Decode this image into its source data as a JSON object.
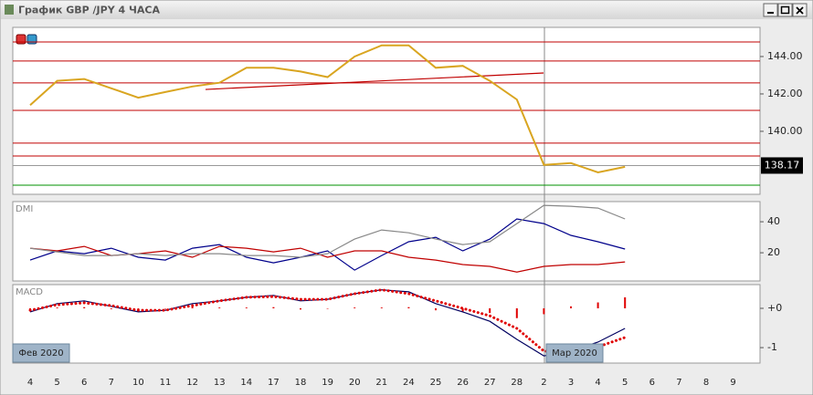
{
  "window": {
    "title": "График GBP /JPY  4 ЧАСА"
  },
  "chart_data": [
    {
      "type": "line",
      "series": [
        {
          "color": "#d9a520",
          "values": [
            141.4,
            142.7,
            142.8,
            142.3,
            141.8,
            142.1,
            142.4,
            142.6,
            143.4,
            143.4,
            143.2,
            142.9,
            144.0,
            144.6,
            144.6,
            143.4,
            143.5,
            142.7,
            141.7,
            138.2,
            138.3,
            137.8,
            138.1,
            null,
            null,
            null,
            null
          ]
        }
      ],
      "ylim": [
        136.68,
        145.56
      ],
      "yticks": [
        {
          "value": 140,
          "label": "140.00"
        },
        {
          "value": 142,
          "label": "142.00"
        },
        {
          "value": 144,
          "label": "144.00"
        }
      ],
      "hlines": [
        {
          "value": 144.78,
          "color": "#c00000"
        },
        {
          "value": 143.76,
          "color": "#c00000"
        },
        {
          "value": 142.59,
          "color": "#c00000"
        },
        {
          "value": 141.12,
          "color": "#c00000"
        },
        {
          "value": 139.37,
          "color": "#c00000"
        },
        {
          "value": 138.68,
          "color": "#c00000"
        },
        {
          "value": 137.12,
          "color": "#009000"
        }
      ],
      "trendlines": [
        {
          "color": "#c00000",
          "values": [
            142.24,
            143.12
          ]
        }
      ],
      "last_price": 138.17
    },
    {
      "type": "line",
      "title": "DMI",
      "series": [
        {
          "color": "#00008b",
          "values": [
            15.3,
            21.2,
            19.4,
            22.9,
            17.1,
            15.3,
            22.9,
            25.3,
            17.1,
            13.5,
            17.1,
            21.2,
            8.8,
            18.2,
            27.1,
            30.0,
            21.2,
            28.8,
            41.8,
            38.8,
            31.2,
            27.1,
            22.4,
            null,
            null,
            null,
            null
          ]
        },
        {
          "color": "#c00000",
          "values": [
            22.9,
            21.2,
            24.1,
            18.2,
            19.4,
            21.2,
            17.1,
            24.1,
            22.9,
            20.6,
            22.9,
            17.1,
            21.2,
            21.2,
            17.1,
            15.3,
            12.4,
            11.2,
            7.6,
            11.2,
            12.4,
            12.4,
            14.1,
            null,
            null,
            null,
            null
          ]
        },
        {
          "color": "#888888",
          "values": [
            22.9,
            20.6,
            18.2,
            18.2,
            19.4,
            18.2,
            19.4,
            19.4,
            18.2,
            18.2,
            17.1,
            19.4,
            28.8,
            34.7,
            32.9,
            28.8,
            25.3,
            27.1,
            38.8,
            50.6,
            50.0,
            48.8,
            41.8,
            null,
            null,
            null,
            null
          ]
        }
      ],
      "ylim": [
        2.4,
        52.4
      ],
      "yticks": [
        20,
        40
      ]
    },
    {
      "type": "line",
      "title": "MACD",
      "categories": [
        "4",
        "5",
        "6",
        "7",
        "10",
        "11",
        "12",
        "13",
        "14",
        "17",
        "18",
        "19",
        "20",
        "21",
        "24",
        "25",
        "26",
        "27",
        "28",
        "2",
        "3",
        "4",
        "5",
        "6",
        "7",
        "8",
        "9"
      ],
      "annotations": [
        "Фев 2020",
        "Мар 2020"
      ],
      "series": [
        {
          "color": "#e00000",
          "style": "histogram",
          "values": [
            -0.03,
            0.02,
            0.03,
            -0.02,
            -0.03,
            0,
            0.04,
            0.02,
            0.02,
            0.03,
            -0.03,
            0,
            0.02,
            0.02,
            0.03,
            -0.05,
            -0.08,
            -0.12,
            -0.25,
            -0.15,
            0.05,
            0.15,
            0.28,
            null,
            null,
            null,
            null
          ]
        },
        {
          "color": "#000060",
          "style": "solid",
          "values": [
            -0.09,
            0.12,
            0.19,
            0.05,
            -0.09,
            -0.05,
            0.12,
            0.19,
            0.28,
            0.33,
            0.19,
            0.23,
            0.37,
            0.47,
            0.42,
            0.12,
            -0.09,
            -0.33,
            -0.79,
            -1.21,
            -1.09,
            -0.86,
            -0.51,
            null,
            null,
            null,
            null
          ]
        },
        {
          "color": "#e00000",
          "style": "dotted",
          "values": [
            -0.05,
            0.09,
            0.14,
            0.07,
            -0.05,
            -0.05,
            0.07,
            0.19,
            0.28,
            0.3,
            0.23,
            0.23,
            0.37,
            0.47,
            0.37,
            0.19,
            0,
            -0.19,
            -0.51,
            -1.09,
            -1.12,
            -0.98,
            -0.74,
            null,
            null,
            null,
            null
          ]
        }
      ],
      "ylim": [
        -1.37,
        0.58
      ],
      "yticks": [
        {
          "value": 0,
          "label": "+0"
        },
        -1
      ]
    }
  ]
}
